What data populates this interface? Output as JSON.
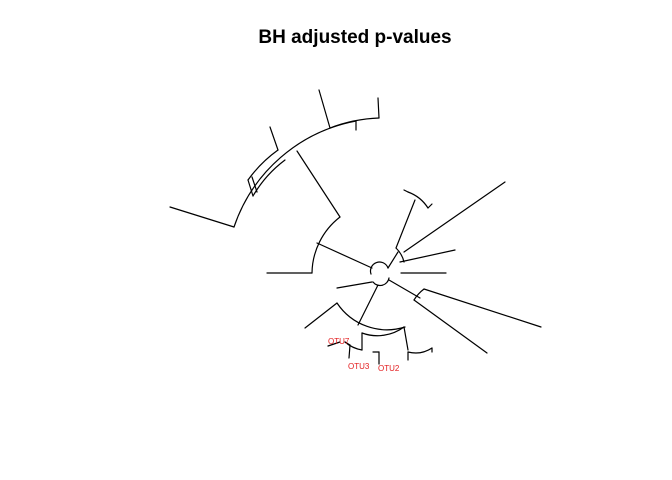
{
  "title": "BH adjusted p-values",
  "tip_labels": [
    {
      "id": "otu7",
      "text": "OTU7"
    },
    {
      "id": "otu3",
      "text": "OTU3"
    },
    {
      "id": "otu2",
      "text": "OTU2"
    }
  ],
  "colors": {
    "background": "#ffffff",
    "edge": "#000000",
    "highlight_label": "#e31a1c"
  }
}
